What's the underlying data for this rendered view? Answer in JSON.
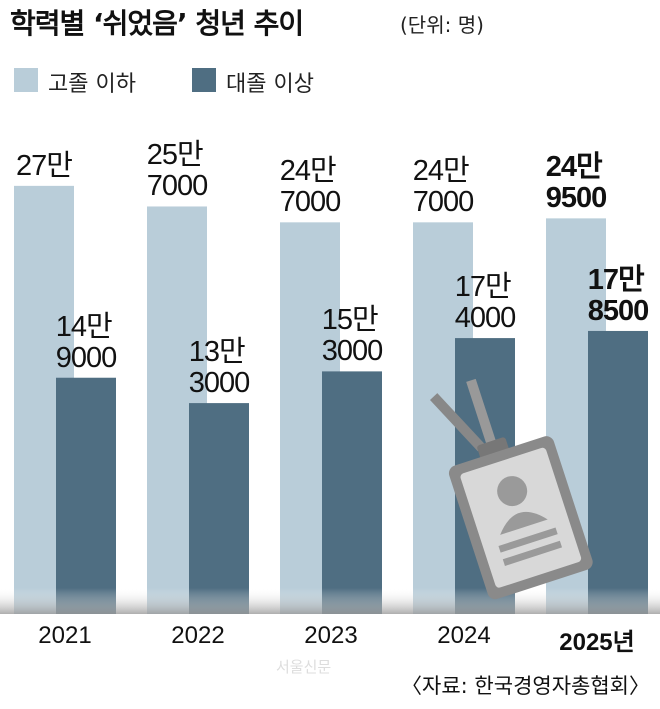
{
  "chart_data": {
    "type": "grouped_bar",
    "title": "학력별 ‘쉬었음’ 청년 추이",
    "subtitle": "(단위: 명)",
    "categories": [
      "2021",
      "2022",
      "2023",
      "2024",
      "2025년"
    ],
    "series": [
      {
        "name": "고졸 이하",
        "color": "#b9cdd9",
        "values": [
          270000,
          257000,
          247000,
          247000,
          249500
        ],
        "value_labels": [
          "27만",
          "25만\n7000",
          "24만\n7000",
          "24만\n7000",
          "24만\n9500"
        ]
      },
      {
        "name": "대졸 이상",
        "color": "#4f6e82",
        "values": [
          149000,
          133000,
          153000,
          174000,
          178500
        ],
        "value_labels": [
          "14만\n9000",
          "13만\n3000",
          "15만\n3000",
          "17만\n4000",
          "17만\n8500"
        ]
      }
    ],
    "ylim": [
      0,
      280000
    ],
    "watermark": "서울신문",
    "source": "〈자료: 한국경영자총협회〉"
  }
}
